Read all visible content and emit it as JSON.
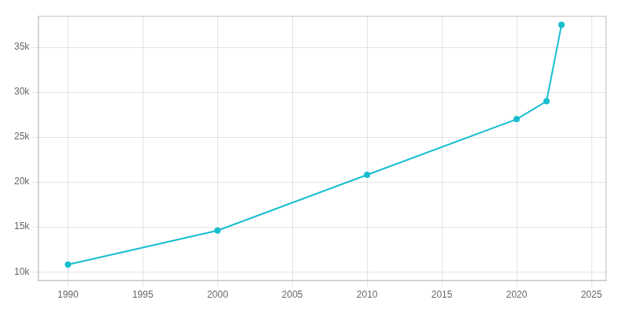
{
  "chart_data": {
    "type": "line",
    "x": [
      1990,
      2000,
      2010,
      2020,
      2022,
      2023
    ],
    "values": [
      10800,
      14600,
      20800,
      27000,
      29000,
      37500
    ],
    "color": "#17becf",
    "marker": "circle",
    "xlim": [
      1988,
      2026
    ],
    "xticks": [
      1990,
      1995,
      2000,
      2005,
      2010,
      2015,
      2020,
      2025
    ],
    "ylim": [
      9000,
      38500
    ],
    "yticks": [
      {
        "value": 10000,
        "label": "10k"
      },
      {
        "value": 15000,
        "label": "15k"
      },
      {
        "value": 20000,
        "label": "20k"
      },
      {
        "value": 25000,
        "label": "25k"
      },
      {
        "value": 30000,
        "label": "30k"
      },
      {
        "value": 35000,
        "label": "35k"
      }
    ],
    "grid": true
  }
}
